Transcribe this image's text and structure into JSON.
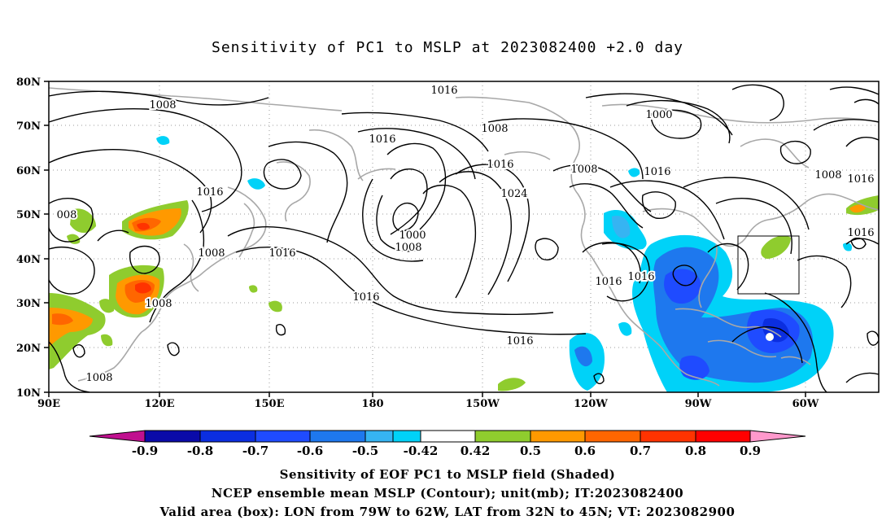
{
  "title": "Sensitivity of PC1 to MSLP at 2023082400 +2.0 day",
  "map": {
    "lon_labels": [
      "90E",
      "120E",
      "150E",
      "180",
      "150W",
      "120W",
      "90W",
      "60W"
    ],
    "lat_labels": [
      "10N",
      "20N",
      "30N",
      "40N",
      "50N",
      "60N",
      "70N",
      "80N"
    ],
    "contour_labels": [
      "1008",
      "1016",
      "1016",
      "1016",
      "1000",
      "1008",
      "1016",
      "1024",
      "1016",
      "1008",
      "1000",
      "1016",
      "1008",
      "1016",
      "1008",
      "1008",
      "1016",
      "008",
      "1016",
      "1008",
      "1008",
      "1016",
      "1016",
      "1016"
    ],
    "box": {
      "lon_min": -79,
      "lon_max": -62,
      "lat_min": 32,
      "lat_max": 45
    }
  },
  "colorbar": {
    "labels": [
      "-0.9",
      "-0.8",
      "-0.7",
      "-0.6",
      "-0.5",
      "-0.42",
      "0.42",
      "0.5",
      "0.6",
      "0.7",
      "0.8",
      "0.9"
    ],
    "colors": [
      "#c0108f",
      "#0a0aa8",
      "#0b2ee0",
      "#1f4bff",
      "#1e78ee",
      "#36b4f2",
      "#00d2f8",
      "#ffffff",
      "#8fcc2e",
      "#ff9900",
      "#ff6600",
      "#ff3300",
      "#ff0000",
      "#ff99cc"
    ]
  },
  "captions": {
    "line1": "Sensitivity of EOF PC1 to MSLP field (Shaded)",
    "line2": "NCEP ensemble mean MSLP (Contour); unit(mb); IT:2023082400",
    "line3": "Valid area (box): LON from 79W to 62W, LAT from 32N to 45N; VT: 2023082900"
  }
}
